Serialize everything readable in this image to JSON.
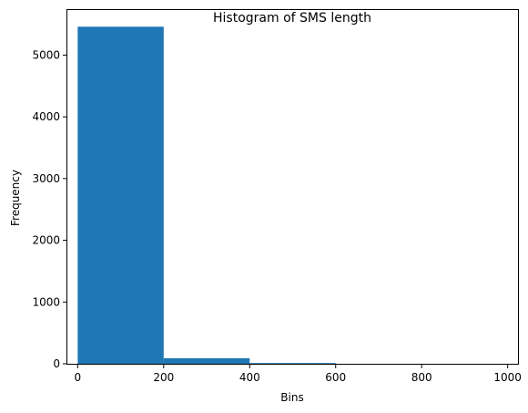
{
  "chart_data": {
    "type": "bar",
    "title": "Histogram of SMS length",
    "xlabel": "Bins",
    "ylabel": "Frequency",
    "xlim": [
      -24,
      1024
    ],
    "ylim": [
      0,
      5730
    ],
    "x_ticks": [
      0,
      200,
      400,
      600,
      800,
      1000
    ],
    "y_ticks": [
      0,
      1000,
      2000,
      3000,
      4000,
      5000
    ],
    "bins": [
      {
        "start": 0,
        "end": 200,
        "value": 5460
      },
      {
        "start": 200,
        "end": 400,
        "value": 90
      },
      {
        "start": 400,
        "end": 600,
        "value": 12
      },
      {
        "start": 600,
        "end": 800,
        "value": 0
      },
      {
        "start": 800,
        "end": 1000,
        "value": 0
      }
    ],
    "bar_color": "#1f77b4",
    "grid": false,
    "legend": "none"
  }
}
